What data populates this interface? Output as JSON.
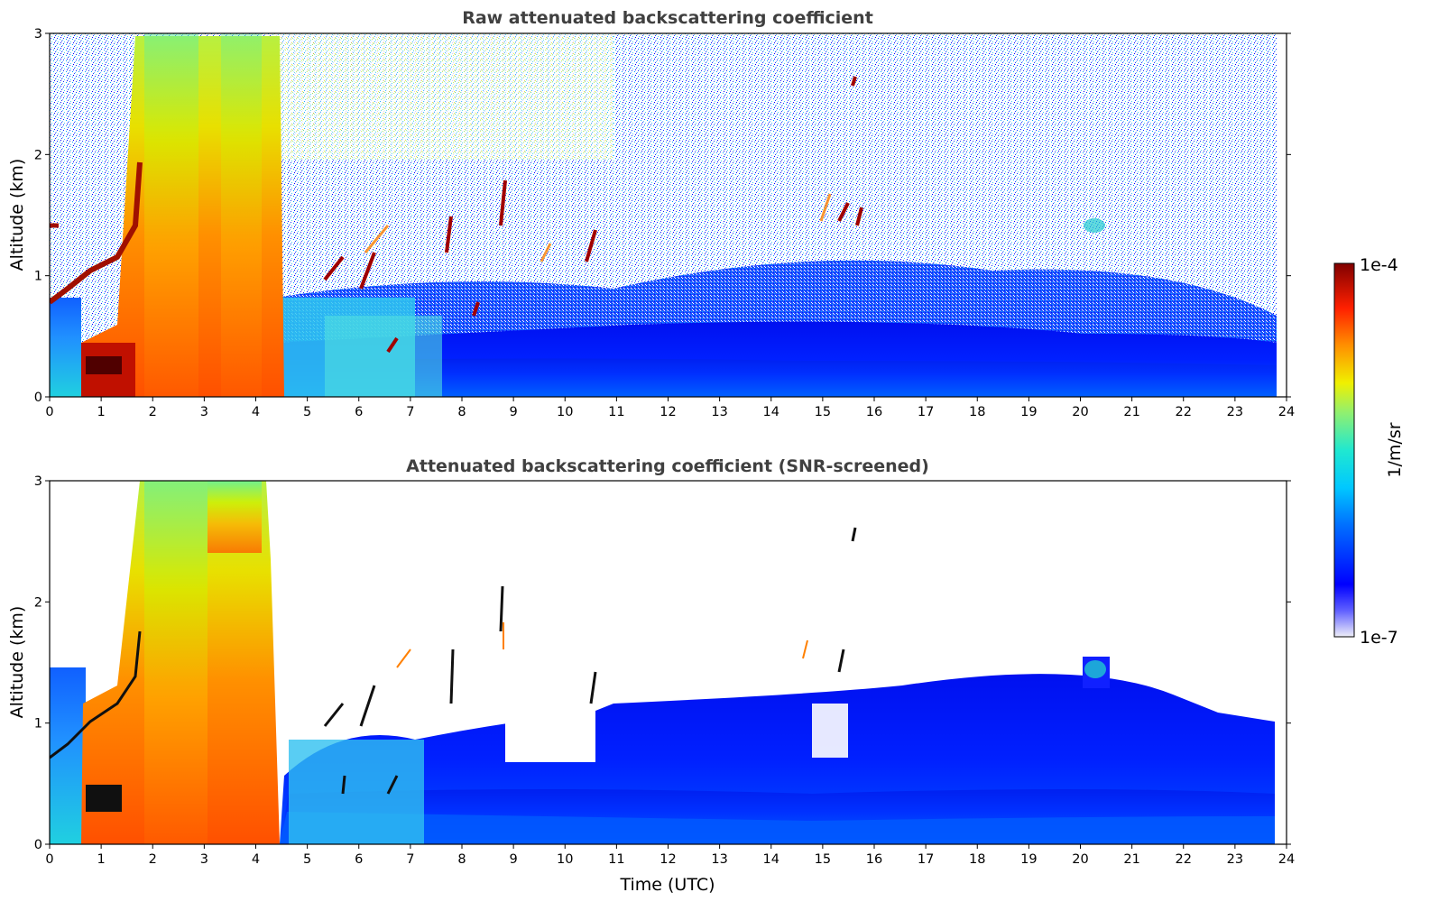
{
  "chart_data": [
    {
      "type": "heatmap",
      "title": "Raw attenuated backscattering coefficient",
      "xlabel": "",
      "ylabel": "Altitude (km)",
      "xlim": [
        0,
        24
      ],
      "ylim": [
        0,
        3
      ],
      "x_ticks": [
        "0",
        "1",
        "2",
        "3",
        "4",
        "5",
        "6",
        "7",
        "8",
        "9",
        "10",
        "11",
        "12",
        "13",
        "14",
        "15",
        "16",
        "17",
        "18",
        "19",
        "20",
        "21",
        "22",
        "23",
        "24"
      ],
      "y_ticks": [
        "0",
        "1",
        "2",
        "3"
      ],
      "features": [
        {
          "name": "dense plume",
          "t_start": 1.7,
          "t_end": 4.4,
          "alt_top": 3.0,
          "level": "high"
        },
        {
          "name": "low layer",
          "t_start": 0.6,
          "t_end": 1.7,
          "alt_top": 0.45,
          "level": "very high"
        },
        {
          "name": "tilted cloud layer",
          "t_start": 0.0,
          "t_end": 2.0,
          "alt_start": 0.8,
          "alt_end": 2.0
        },
        {
          "name": "scattered clouds",
          "t_start": 5.0,
          "t_end": 11.0,
          "alt_range": [
            0.3,
            1.7
          ]
        },
        {
          "name": "cloud cluster",
          "t_start": 14.8,
          "t_end": 16.0,
          "alt_range": [
            1.2,
            1.7
          ]
        },
        {
          "name": "boundary layer",
          "t_start": 4.5,
          "t_end": 23.8,
          "alt_top": 0.9,
          "level": "low"
        }
      ]
    },
    {
      "type": "heatmap",
      "title": "Attenuated backscattering coefficient (SNR-screened)",
      "xlabel": "Time (UTC)",
      "ylabel": "Altitude (km)",
      "xlim": [
        0,
        24
      ],
      "ylim": [
        0,
        3
      ],
      "x_ticks": [
        "0",
        "1",
        "2",
        "3",
        "4",
        "5",
        "6",
        "7",
        "8",
        "9",
        "10",
        "11",
        "12",
        "13",
        "14",
        "15",
        "16",
        "17",
        "18",
        "19",
        "20",
        "21",
        "22",
        "23",
        "24"
      ],
      "y_ticks": [
        "0",
        "1",
        "2",
        "3"
      ],
      "features": [
        {
          "name": "dense plume",
          "t_start": 1.7,
          "t_end": 4.4,
          "alt_top": 3.0,
          "level": "high"
        },
        {
          "name": "boundary layer",
          "t_start": 4.5,
          "t_end": 23.8,
          "alt_top": 1.4,
          "level": "low"
        },
        {
          "name": "cloud top bump",
          "t_start": 20.0,
          "t_end": 20.5,
          "alt_range": [
            1.3,
            1.55
          ]
        }
      ]
    }
  ],
  "colorbar": {
    "label": "1/m/sr",
    "max_label": "1e-4",
    "min_label": "1e-7",
    "scale": "log",
    "colormap": "jet",
    "colors": [
      "#e8e8f8",
      "#0000ff",
      "#00b0ff",
      "#20e8e0",
      "#90f070",
      "#f0f000",
      "#ff9000",
      "#ff2000",
      "#800000"
    ]
  }
}
